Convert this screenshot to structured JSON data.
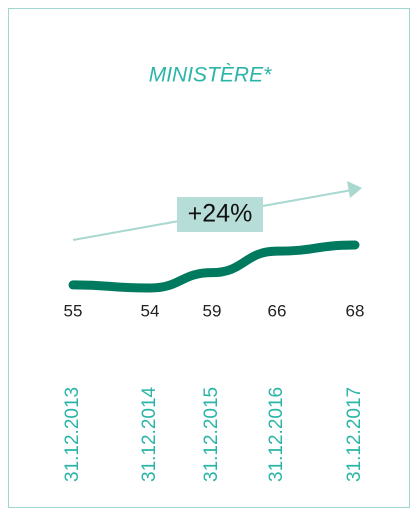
{
  "chart_data": {
    "type": "line",
    "title": "MINISTÈRE*",
    "annotation": "+24%",
    "categories": [
      "31.12.2013",
      "31.12.2014",
      "31.12.2015",
      "31.12.2016",
      "31.12.2017"
    ],
    "values": [
      55,
      54,
      59,
      66,
      68
    ],
    "color": "#007a5e",
    "label_color": "#2bb5a8"
  }
}
